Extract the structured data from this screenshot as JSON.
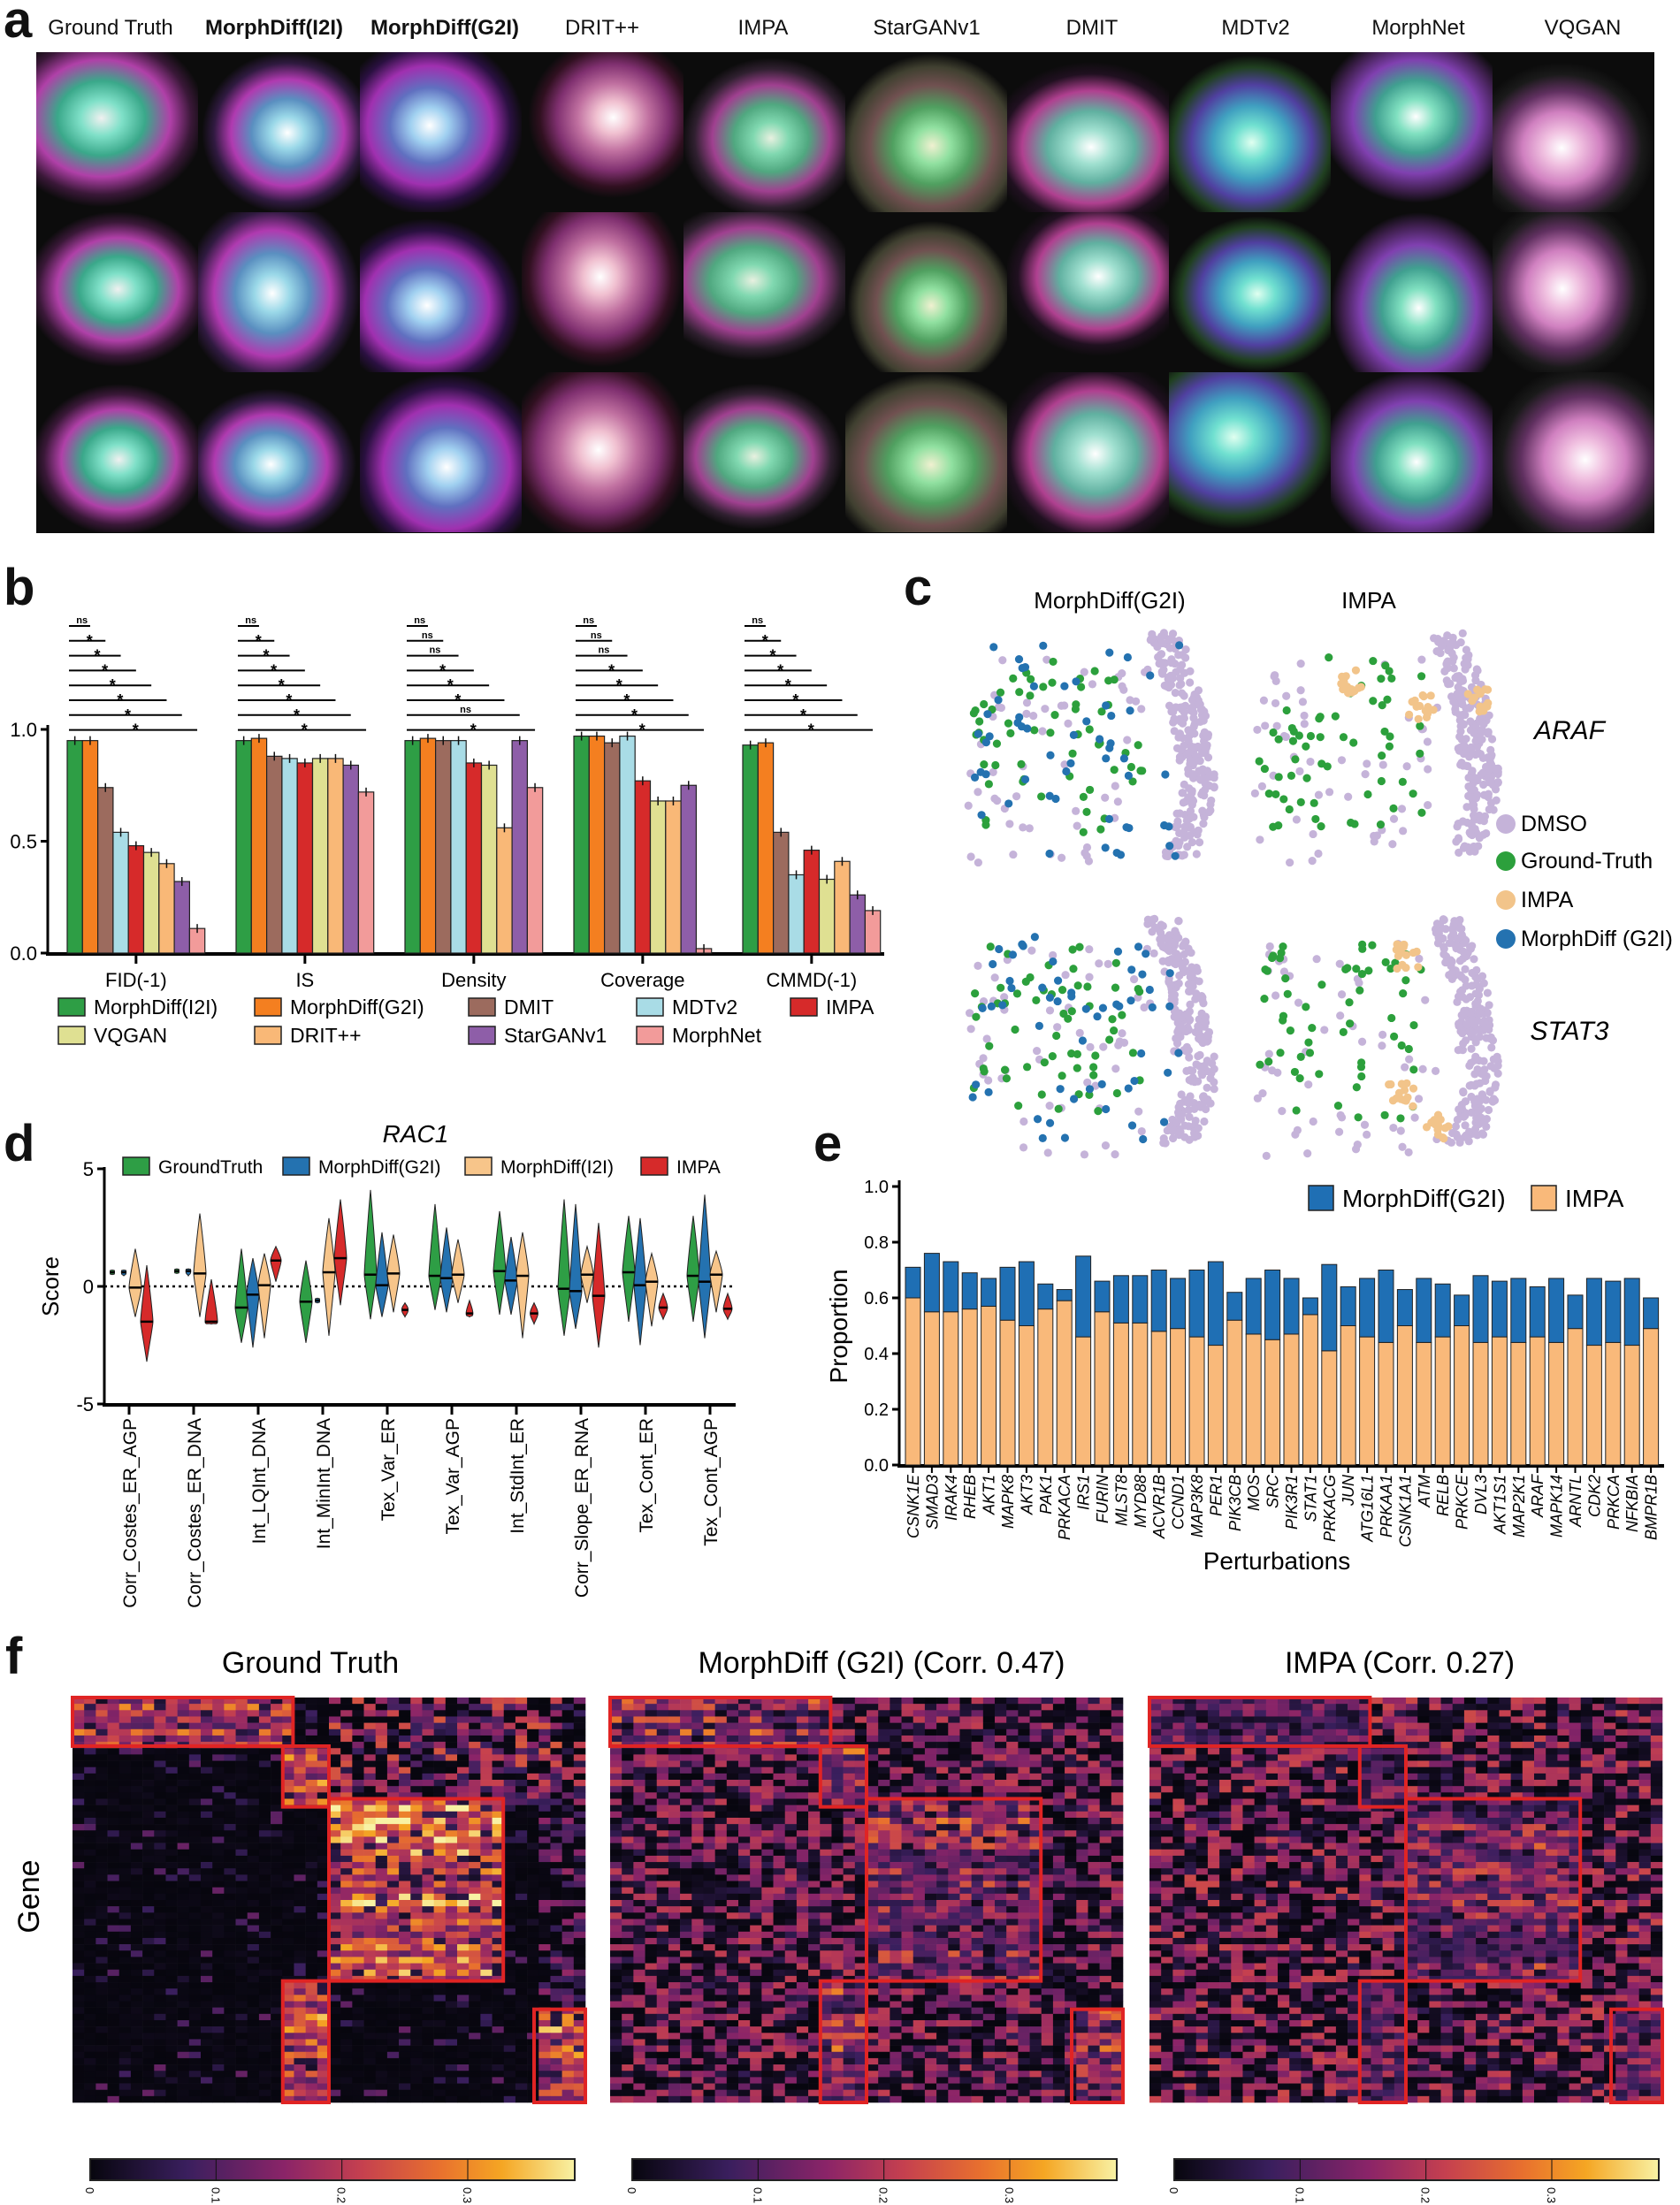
{
  "panels": {
    "a": {
      "label": "a",
      "columns": [
        {
          "label": "Ground Truth",
          "bold": false
        },
        {
          "label": "MorphDiff(I2I)",
          "bold": true
        },
        {
          "label": "MorphDiff(G2I)",
          "bold": true
        },
        {
          "label": "DRIT++",
          "bold": false
        },
        {
          "label": "IMPA",
          "bold": false
        },
        {
          "label": "StarGANv1",
          "bold": false
        },
        {
          "label": "DMIT",
          "bold": false
        },
        {
          "label": "MDTv2",
          "bold": false
        },
        {
          "label": "MorphNet",
          "bold": false
        },
        {
          "label": "VQGAN",
          "bold": false
        }
      ],
      "rows": 3
    },
    "b": {
      "label": "b"
    },
    "c": {
      "label": "c"
    },
    "d": {
      "label": "d"
    },
    "e": {
      "label": "e"
    },
    "f": {
      "label": "f"
    }
  },
  "chart_data": [
    {
      "panel": "b",
      "type": "bar",
      "categories": [
        "FID(-1)",
        "IS",
        "Density",
        "Coverage",
        "CMMD(-1)"
      ],
      "ylim": [
        0,
        1
      ],
      "yticks": [
        "0.0",
        "0.5",
        "1.0"
      ],
      "series": [
        {
          "name": "MorphDiff(I2I)",
          "color": "#2e9e45",
          "values": [
            0.95,
            0.95,
            0.95,
            0.97,
            0.93
          ]
        },
        {
          "name": "MorphDiff(G2I)",
          "color": "#f47f20",
          "values": [
            0.95,
            0.96,
            0.96,
            0.97,
            0.94
          ]
        },
        {
          "name": "DMIT",
          "color": "#9c6b5e",
          "values": [
            0.74,
            0.88,
            0.95,
            0.94,
            0.54
          ]
        },
        {
          "name": "MDTv2",
          "color": "#a9dce6",
          "values": [
            0.54,
            0.87,
            0.95,
            0.97,
            0.35
          ]
        },
        {
          "name": "IMPA",
          "color": "#d62a2a",
          "values": [
            0.48,
            0.85,
            0.85,
            0.77,
            0.46
          ]
        },
        {
          "name": "VQGAN",
          "color": "#dfe092",
          "values": [
            0.45,
            0.87,
            0.84,
            0.68,
            0.33
          ]
        },
        {
          "name": "DRIT++",
          "color": "#f9b877",
          "values": [
            0.4,
            0.87,
            0.56,
            0.68,
            0.41
          ]
        },
        {
          "name": "StarGANv1",
          "color": "#8e5ea8",
          "values": [
            0.32,
            0.84,
            0.95,
            0.75,
            0.26
          ]
        },
        {
          "name": "MorphNet",
          "color": "#f29b9a",
          "values": [
            0.11,
            0.72,
            0.74,
            0.02,
            0.19
          ]
        }
      ],
      "legend_rows": [
        [
          "MorphDiff(I2I)",
          "MorphDiff(G2I)",
          "DMIT",
          "MDTv2",
          "IMPA"
        ],
        [
          "VQGAN",
          "DRIT++",
          "StarGANv1",
          "MorphNet"
        ]
      ],
      "significance": [
        [
          "ns",
          "*",
          "*",
          "*",
          "*",
          "*",
          "*",
          "*"
        ],
        [
          "ns",
          "*",
          "*",
          "*",
          "*",
          "*",
          "*",
          "*"
        ],
        [
          "ns",
          "ns",
          "ns",
          "*",
          "*",
          "*",
          "ns",
          "*"
        ],
        [
          "ns",
          "ns",
          "ns",
          "*",
          "*",
          "*",
          "*",
          "*"
        ],
        [
          "ns",
          "*",
          "*",
          "*",
          "*",
          "*",
          "*",
          "*"
        ]
      ]
    },
    {
      "panel": "c",
      "type": "scatter",
      "column_titles": [
        "MorphDiff(G2I)",
        "IMPA"
      ],
      "row_labels": [
        "ARAF",
        "STAT3"
      ],
      "legend": [
        {
          "name": "DMSO",
          "color": "#c5b3d9"
        },
        {
          "name": "Ground-Truth",
          "color": "#2ca03c"
        },
        {
          "name": "IMPA",
          "color": "#f2c48a"
        },
        {
          "name": "MorphDiff (G2I)",
          "color": "#2472b0"
        }
      ]
    },
    {
      "panel": "d",
      "type": "violin",
      "title": "RAC1",
      "ylabel": "Score",
      "ylim": [
        -5,
        5
      ],
      "yticks": [
        "-5",
        "0",
        "5"
      ],
      "legend": [
        {
          "name": "GroundTruth",
          "color": "#2e9e45"
        },
        {
          "name": "MorphDiff(G2I)",
          "color": "#2472b0"
        },
        {
          "name": "MorphDiff(I2I)",
          "color": "#f7c58a"
        },
        {
          "name": "IMPA",
          "color": "#d62a2a"
        }
      ],
      "categories": [
        "Corr_Costes_ER_AGP",
        "Corr_Costes_ER_DNA",
        "Int_LQInt_DNA",
        "Int_MinInt_DNA",
        "Tex_Var_ER",
        "Tex_Var_AGP",
        "Int_StdInt_ER",
        "Corr_Slope_ER_RNA",
        "Tex_Cont_ER",
        "Tex_Cont_AGP"
      ],
      "series": [
        {
          "name": "GroundTruth",
          "median": [
            0.6,
            0.65,
            -0.9,
            -0.65,
            0.5,
            0.45,
            0.65,
            -0.1,
            0.6,
            0.45
          ],
          "min": [
            0.5,
            0.55,
            -2.4,
            -2.4,
            -1.4,
            -1.0,
            -1.2,
            -2.1,
            -1.5,
            -1.5
          ],
          "max": [
            0.7,
            0.75,
            1.6,
            1.1,
            4.1,
            3.5,
            3.2,
            3.7,
            3.0,
            3.0
          ]
        },
        {
          "name": "MorphDiff(G2I)",
          "median": [
            0.6,
            0.65,
            -0.35,
            -0.6,
            0.05,
            0.35,
            0.25,
            -0.2,
            0.05,
            0.2
          ],
          "min": [
            0.45,
            0.45,
            -2.6,
            -0.7,
            -1.3,
            -1.1,
            -1.2,
            -1.8,
            -2.5,
            -2.2
          ],
          "max": [
            0.7,
            0.75,
            1.2,
            -0.5,
            2.3,
            2.5,
            2.1,
            3.5,
            2.9,
            3.9
          ]
        },
        {
          "name": "MorphDiff(I2I)",
          "median": [
            -0.05,
            0.55,
            0.05,
            0.6,
            0.55,
            0.5,
            0.45,
            0.5,
            0.2,
            0.5
          ],
          "min": [
            -1.3,
            -1.3,
            -2.2,
            -2.1,
            -1.1,
            -0.7,
            -2.2,
            -0.7,
            -1.7,
            -1.1
          ],
          "max": [
            1.6,
            3.1,
            1.4,
            2.9,
            2.2,
            2.0,
            2.3,
            1.7,
            1.4,
            1.5
          ]
        },
        {
          "name": "IMPA",
          "median": [
            -1.5,
            -1.5,
            1.1,
            1.2,
            -1.0,
            -1.15,
            -1.15,
            -0.4,
            -0.9,
            -0.95
          ],
          "min": [
            -3.2,
            -1.6,
            0.2,
            -0.8,
            -1.3,
            -1.3,
            -1.6,
            -2.6,
            -1.4,
            -1.4
          ],
          "max": [
            0.9,
            0.3,
            1.7,
            3.7,
            -0.7,
            -0.6,
            -0.7,
            2.7,
            -0.3,
            -0.3
          ]
        }
      ]
    },
    {
      "panel": "e",
      "type": "bar",
      "stacked": true,
      "ylabel": "Proportion",
      "xlabel": "Perturbations",
      "ylim": [
        0,
        1
      ],
      "yticks": [
        "0.0",
        "0.2",
        "0.4",
        "0.6",
        "0.8",
        "1.0"
      ],
      "categories": [
        "CSNK1E",
        "SMAD3",
        "IRAK4",
        "RHEB",
        "AKT1",
        "MAPK8",
        "AKT3",
        "PAK1",
        "PRKACA",
        "IRS1",
        "FURIN",
        "MLST8",
        "MYD88",
        "ACVR1B",
        "CCND1",
        "MAP3K8",
        "PER1",
        "PIK3CB",
        "MOS",
        "SRC",
        "PIK3R1",
        "STAT1",
        "PRKACG",
        "JUN",
        "ATG16L1",
        "PRKAA1",
        "CSNK1A1",
        "ATM",
        "RELB",
        "PRKCE",
        "DVL3",
        "AKT1S1",
        "MAP2K1",
        "ARAF",
        "MAPK14",
        "ARNTL",
        "CDK2",
        "PRKCA",
        "NFKBIA",
        "BMPR1B"
      ],
      "series": [
        {
          "name": "IMPA",
          "color": "#f9b97a",
          "values": [
            0.6,
            0.55,
            0.55,
            0.56,
            0.57,
            0.52,
            0.5,
            0.56,
            0.59,
            0.46,
            0.55,
            0.51,
            0.51,
            0.48,
            0.49,
            0.46,
            0.43,
            0.52,
            0.47,
            0.45,
            0.47,
            0.54,
            0.41,
            0.5,
            0.46,
            0.44,
            0.5,
            0.44,
            0.46,
            0.5,
            0.44,
            0.46,
            0.44,
            0.46,
            0.44,
            0.49,
            0.43,
            0.44,
            0.43,
            0.49
          ]
        },
        {
          "name": "MorphDiff(G2I)",
          "color": "#1f6fb4",
          "values": [
            0.11,
            0.21,
            0.18,
            0.13,
            0.1,
            0.19,
            0.23,
            0.09,
            0.04,
            0.29,
            0.11,
            0.17,
            0.17,
            0.22,
            0.18,
            0.24,
            0.3,
            0.1,
            0.2,
            0.25,
            0.2,
            0.06,
            0.31,
            0.14,
            0.21,
            0.26,
            0.13,
            0.23,
            0.19,
            0.11,
            0.24,
            0.2,
            0.23,
            0.18,
            0.23,
            0.12,
            0.24,
            0.22,
            0.24,
            0.11
          ]
        }
      ],
      "legend": [
        "MorphDiff(G2I)",
        "IMPA"
      ],
      "legend_placement": "top-right"
    },
    {
      "panel": "f",
      "type": "heatmap",
      "ylabel": "Gene",
      "titles": [
        "Ground Truth",
        "MorphDiff (G2I) (Corr. 0.47)",
        "IMPA (Corr. 0.27)"
      ],
      "colorbar_ticks": [
        "0",
        "0.1",
        "0.2",
        "0.3"
      ],
      "colormap": "inferno",
      "highlight_color": "#e02424"
    }
  ]
}
